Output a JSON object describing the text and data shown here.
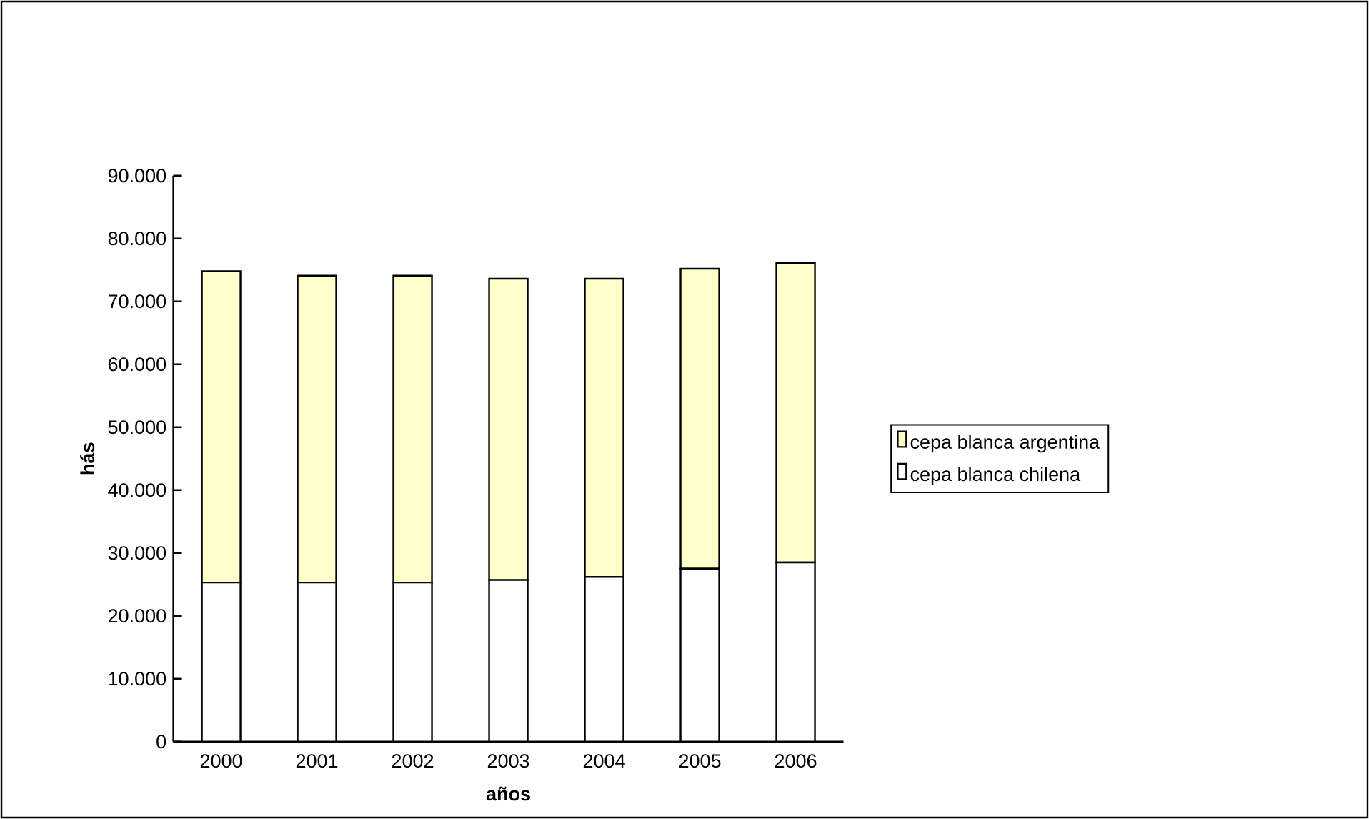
{
  "chart_data": {
    "type": "bar",
    "stacked": true,
    "xlabel": "años",
    "ylabel": "hás",
    "categories": [
      "2000",
      "2001",
      "2002",
      "2003",
      "2004",
      "2005",
      "2006"
    ],
    "series": [
      {
        "name": "cepa blanca chilena",
        "color": "#ffffff",
        "values": [
          25300,
          25300,
          25300,
          25700,
          26200,
          27500,
          28500
        ]
      },
      {
        "name": "cepa blanca argentina",
        "color": "#ffffcc",
        "values": [
          49500,
          48800,
          48800,
          47900,
          47400,
          47700,
          47600
        ]
      }
    ],
    "ylim": [
      0,
      90000
    ],
    "yticks": [
      {
        "value": 0,
        "label": "0"
      },
      {
        "value": 10000,
        "label": "10.000"
      },
      {
        "value": 20000,
        "label": "20.000"
      },
      {
        "value": 30000,
        "label": "30.000"
      },
      {
        "value": 40000,
        "label": "40.000"
      },
      {
        "value": 50000,
        "label": "50.000"
      },
      {
        "value": 60000,
        "label": "60.000"
      },
      {
        "value": 70000,
        "label": "70.000"
      },
      {
        "value": 80000,
        "label": "80.000"
      },
      {
        "value": 90000,
        "label": "90.000"
      }
    ],
    "grid": false,
    "legend": "right"
  }
}
